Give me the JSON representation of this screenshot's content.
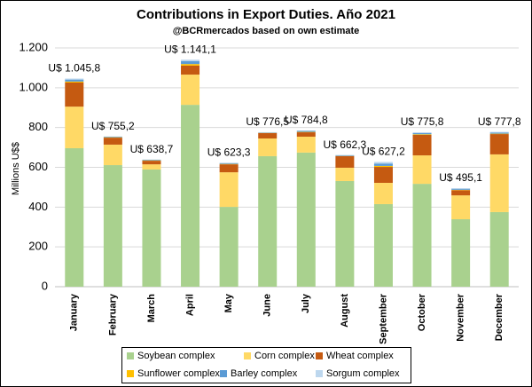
{
  "chart_data": {
    "type": "bar",
    "stacked": true,
    "title": "Contributions in Export Duties. Año 2021",
    "subtitle": "@BCRmercados based on own estimate",
    "y_label": "Millions U$$",
    "categories": [
      "January",
      "February",
      "March",
      "April",
      "May",
      "June",
      "July",
      "August",
      "September",
      "October",
      "November",
      "December"
    ],
    "series": [
      {
        "name": "Soybean complex",
        "color": "#a9d18e",
        "values": [
          696,
          611,
          589,
          914,
          401,
          656,
          674,
          531,
          415,
          517,
          339,
          375
        ]
      },
      {
        "name": "Corn complex",
        "color": "#ffd966",
        "values": [
          209,
          103,
          26,
          152,
          174,
          89,
          80,
          67,
          107,
          143,
          120,
          290
        ]
      },
      {
        "name": "Wheat complex",
        "color": "#c55a11",
        "values": [
          121,
          35,
          18,
          45,
          40,
          27,
          22,
          58,
          80,
          103,
          26,
          102
        ]
      },
      {
        "name": "Sunflower complex",
        "color": "#ffc000",
        "values": [
          5,
          2,
          2,
          8,
          2,
          1,
          2,
          1,
          5,
          3,
          2,
          2
        ]
      },
      {
        "name": "Barley complex",
        "color": "#5b9bd5",
        "values": [
          10,
          3,
          3,
          15,
          4,
          2,
          5,
          3,
          12,
          6,
          5,
          6
        ]
      },
      {
        "name": "Sorgum complex",
        "color": "#bdd7ee",
        "values": [
          5,
          1,
          1,
          7,
          2,
          1.5,
          2,
          2,
          8,
          4,
          3,
          3
        ]
      }
    ],
    "total_labels": [
      "U$ 1.045,8",
      "U$ 755,2",
      "U$ 638,7",
      "U$ 1.141,1",
      "U$ 623,3",
      "U$ 776,5",
      "U$ 784,8",
      "U$ 662,3",
      "U$ 627,2",
      "U$ 775,8",
      "U$ 495,1",
      "U$ 777,8"
    ],
    "ylim": [
      0,
      1200
    ],
    "yticks": [
      0,
      200,
      400,
      600,
      800,
      {
        "value": 1000,
        "label": "1.000"
      },
      {
        "value": 1200,
        "label": "1.200"
      }
    ],
    "grid": true,
    "legend": "bottom"
  }
}
